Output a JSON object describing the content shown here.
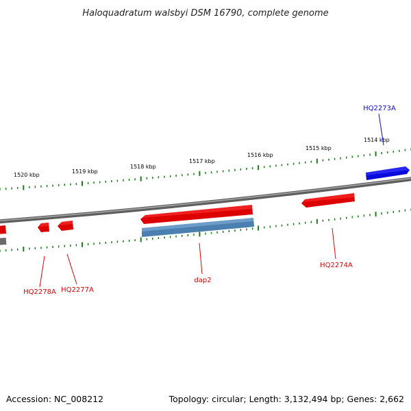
{
  "title": "Haloquadratum walsbyi DSM 16790, complete genome",
  "footer": {
    "accession": "Accession: NC_008212",
    "summary": "Topology: circular; Length: 3,132,494 bp; Genes: 2,662"
  },
  "scale_labels": [
    "1520 kbp",
    "1519 kbp",
    "1518 kbp",
    "1517 kbp",
    "1516 kbp",
    "1515 kbp",
    "1514 kbp"
  ],
  "genes": [
    {
      "label": "HQ2273A",
      "strand": "forward",
      "color": "#0a0adc"
    },
    {
      "label": "HQ2274A",
      "strand": "reverse",
      "color": "#dd0000"
    },
    {
      "label": "dap2",
      "strand": "reverse",
      "color": "#dd0000"
    },
    {
      "label": "HQ2277A",
      "strand": "reverse",
      "color": "#dd0000"
    },
    {
      "label": "HQ2278A",
      "strand": "reverse",
      "color": "#dd0000"
    }
  ],
  "colors": {
    "backbone": "#7a7a7a",
    "ticks": "#1a7a1a",
    "forward_gene": "#0a0adc",
    "reverse_gene": "#dd0000",
    "cds_feature": "#4a7fb0"
  }
}
